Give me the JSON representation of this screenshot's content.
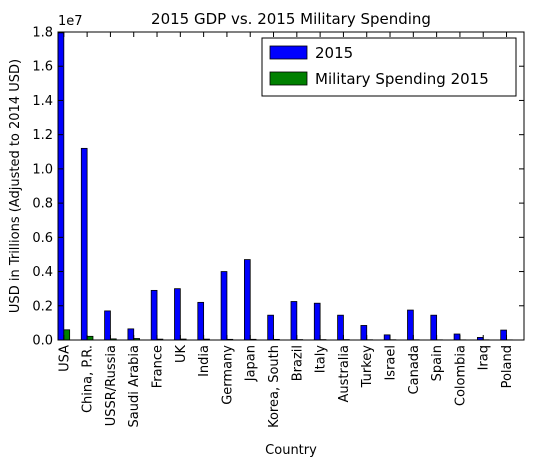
{
  "chart_data": {
    "type": "bar",
    "title": "2015 GDP vs. 2015 Military Spending",
    "xlabel": "Country",
    "ylabel": "USD in Trillions (Adjusted to 2014 USD)",
    "y_offset_label": "1e7",
    "ylim": [
      0,
      18000000
    ],
    "yticks": [
      0,
      2000000,
      4000000,
      6000000,
      8000000,
      10000000,
      12000000,
      14000000,
      16000000,
      18000000
    ],
    "ytick_labels": [
      "0.0",
      "0.2",
      "0.4",
      "0.6",
      "0.8",
      "1.0",
      "1.2",
      "1.4",
      "1.6",
      "1.8"
    ],
    "legend_position": "top-right",
    "grid": false,
    "categories": [
      "USA",
      "China, P.R.",
      "USSR/Russia",
      "Saudi Arabia",
      "France",
      "UK",
      "India",
      "Germany",
      "Japan",
      "Korea, South",
      "Brazil",
      "Italy",
      "Australia",
      "Turkey",
      "Israel",
      "Canada",
      "Spain",
      "Colombia",
      "Iraq",
      "Poland"
    ],
    "series": [
      {
        "name": "2015",
        "color": "#0000ff",
        "values": [
          17950000,
          11200000,
          1700000,
          650000,
          2900000,
          3000000,
          2200000,
          4000000,
          4700000,
          1450000,
          2250000,
          2150000,
          1450000,
          850000,
          300000,
          1750000,
          1450000,
          350000,
          150000,
          580000
        ]
      },
      {
        "name": "Military Spending 2015",
        "color": "#008000",
        "values": [
          596000,
          215000,
          66000,
          87000,
          51000,
          55000,
          51000,
          39000,
          41000,
          36000,
          24000,
          24000,
          24000,
          15000,
          16000,
          15000,
          12000,
          10000,
          13000,
          10000
        ]
      }
    ]
  }
}
